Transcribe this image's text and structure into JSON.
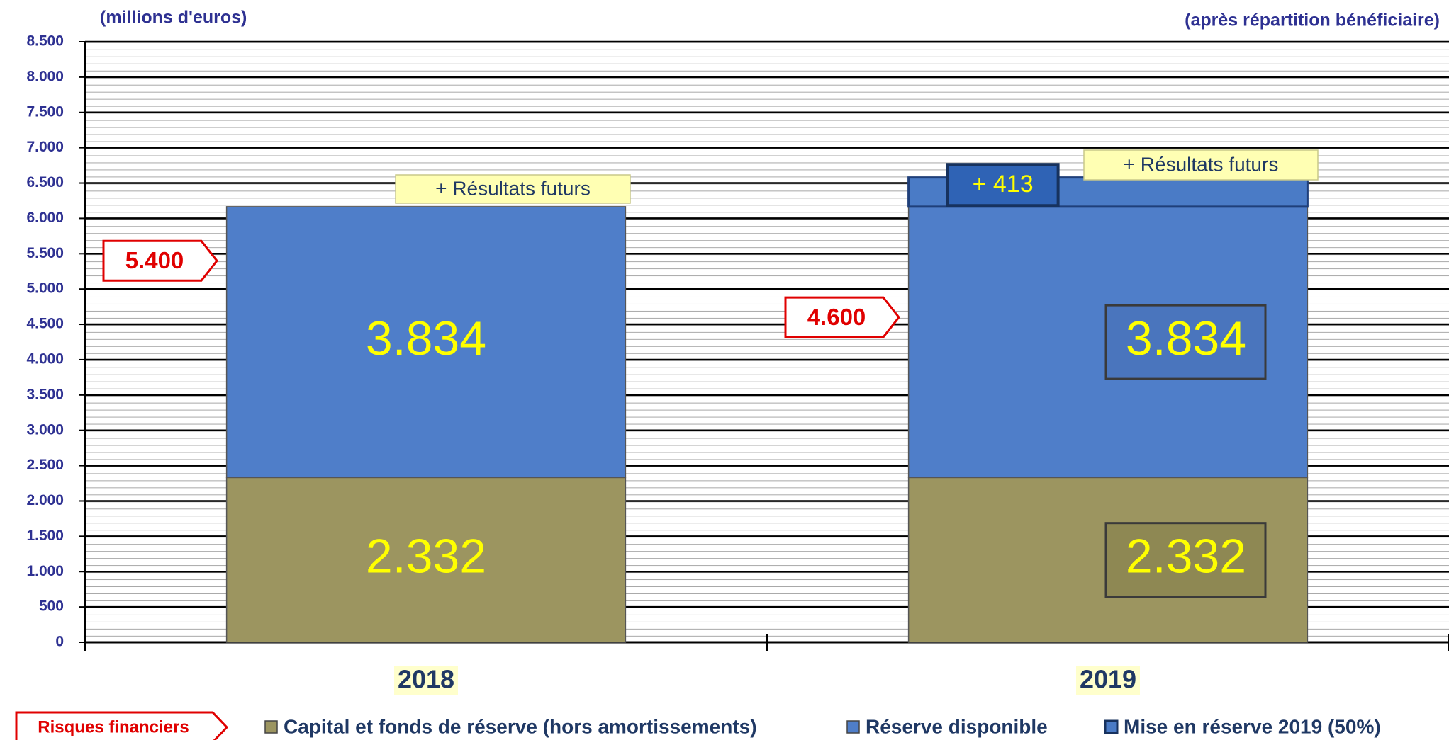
{
  "chart_data": {
    "type": "bar",
    "stacked": true,
    "title": "(millions d'euros)",
    "subtitle": "(après répartition bénéficiaire)",
    "categories": [
      "2018",
      "2019"
    ],
    "series": [
      {
        "name": "Capital et fonds de réserve (hors amortissements)",
        "color": "#9c9560",
        "values": [
          2332,
          2332
        ],
        "value_labels": [
          "2.332",
          "2.332"
        ]
      },
      {
        "name": "Réserve disponible",
        "color": "#4f7ec9",
        "values": [
          3834,
          3834
        ],
        "value_labels": [
          "3.834",
          "3.834"
        ]
      },
      {
        "name": "Mise en réserve 2019 (50%)",
        "color": "#4a7bc6",
        "values": [
          null,
          413
        ],
        "value_labels": [
          null,
          "+ 413"
        ]
      }
    ],
    "ylim": [
      0,
      8500
    ],
    "yticks": [
      0,
      500,
      {
        "value": 1000,
        "label": "1.000"
      },
      {
        "value": 1500,
        "label": "1.500"
      },
      {
        "value": 2000,
        "label": "2.000"
      },
      {
        "value": 2500,
        "label": "2.500"
      },
      {
        "value": 3000,
        "label": "3.000"
      },
      {
        "value": 3500,
        "label": "3.500"
      },
      {
        "value": 4000,
        "label": "4.000"
      },
      {
        "value": 4500,
        "label": "4.500"
      },
      {
        "value": 5000,
        "label": "5.000"
      },
      {
        "value": 5500,
        "label": "5.500"
      },
      {
        "value": 6000,
        "label": "6.000"
      },
      {
        "value": 6500,
        "label": "6.500"
      },
      {
        "value": 7000,
        "label": "7.000"
      },
      {
        "value": 7500,
        "label": "7.500"
      },
      {
        "value": 8000,
        "label": "8.000"
      },
      {
        "value": 8500,
        "label": "8.500"
      }
    ],
    "grid": true,
    "risk_legend": "Risques financiers",
    "risk_levels": [
      {
        "value": 5400,
        "label": "5.400"
      },
      {
        "value": 4600,
        "label": "4.600"
      }
    ],
    "annotations": [
      "+ Résultats futurs",
      "+ Résultats futurs"
    ]
  }
}
